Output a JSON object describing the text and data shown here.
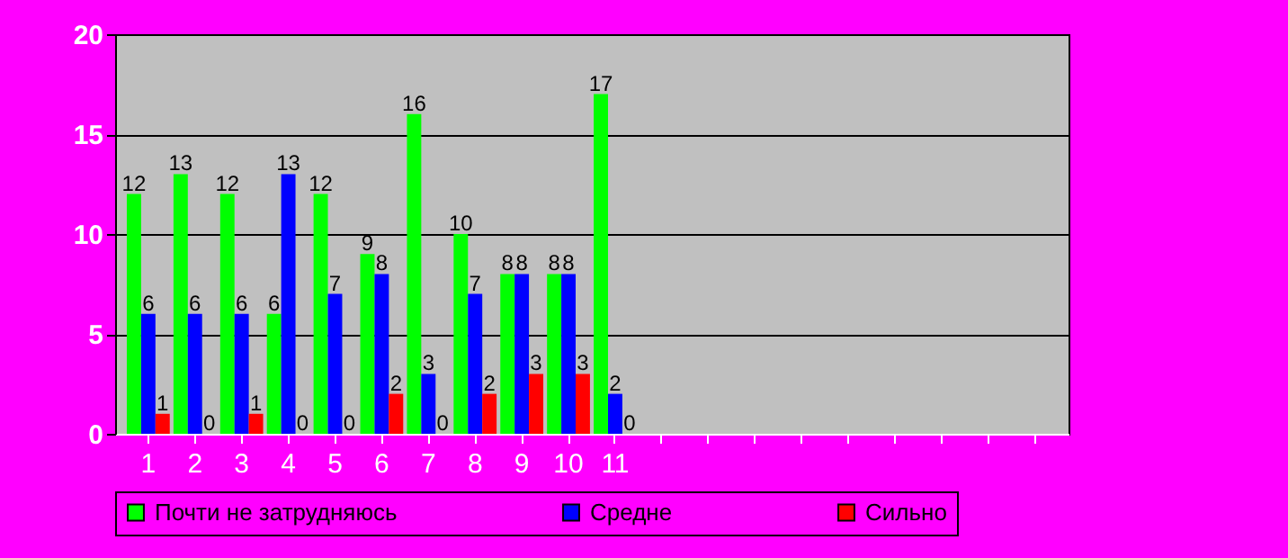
{
  "chart_data": {
    "type": "bar",
    "categories": [
      "1",
      "2",
      "3",
      "4",
      "5",
      "6",
      "7",
      "8",
      "9",
      "10",
      "11",
      null,
      null,
      null,
      null,
      null,
      null,
      null,
      null,
      null
    ],
    "series": [
      {
        "name": "Почти не затрудняюсь",
        "color": "#00ff00",
        "values": [
          12,
          13,
          12,
          6,
          12,
          9,
          16,
          10,
          8,
          8,
          17,
          null,
          null,
          null,
          null,
          null,
          null,
          null,
          null,
          null
        ]
      },
      {
        "name": "Средне",
        "color": "#0000ff",
        "values": [
          6,
          6,
          6,
          13,
          7,
          8,
          3,
          7,
          8,
          8,
          2,
          null,
          null,
          null,
          null,
          null,
          null,
          null,
          null,
          null
        ]
      },
      {
        "name": "Сильно",
        "color": "#ff0000",
        "values": [
          1,
          0,
          1,
          0,
          0,
          2,
          0,
          2,
          3,
          3,
          0,
          null,
          null,
          null,
          null,
          null,
          null,
          null,
          null,
          null
        ]
      }
    ],
    "ylim": [
      0,
      20
    ],
    "yticks": [
      0,
      5,
      10,
      15,
      20
    ],
    "grid": "y",
    "legend": "bottom",
    "data_labels": true
  }
}
